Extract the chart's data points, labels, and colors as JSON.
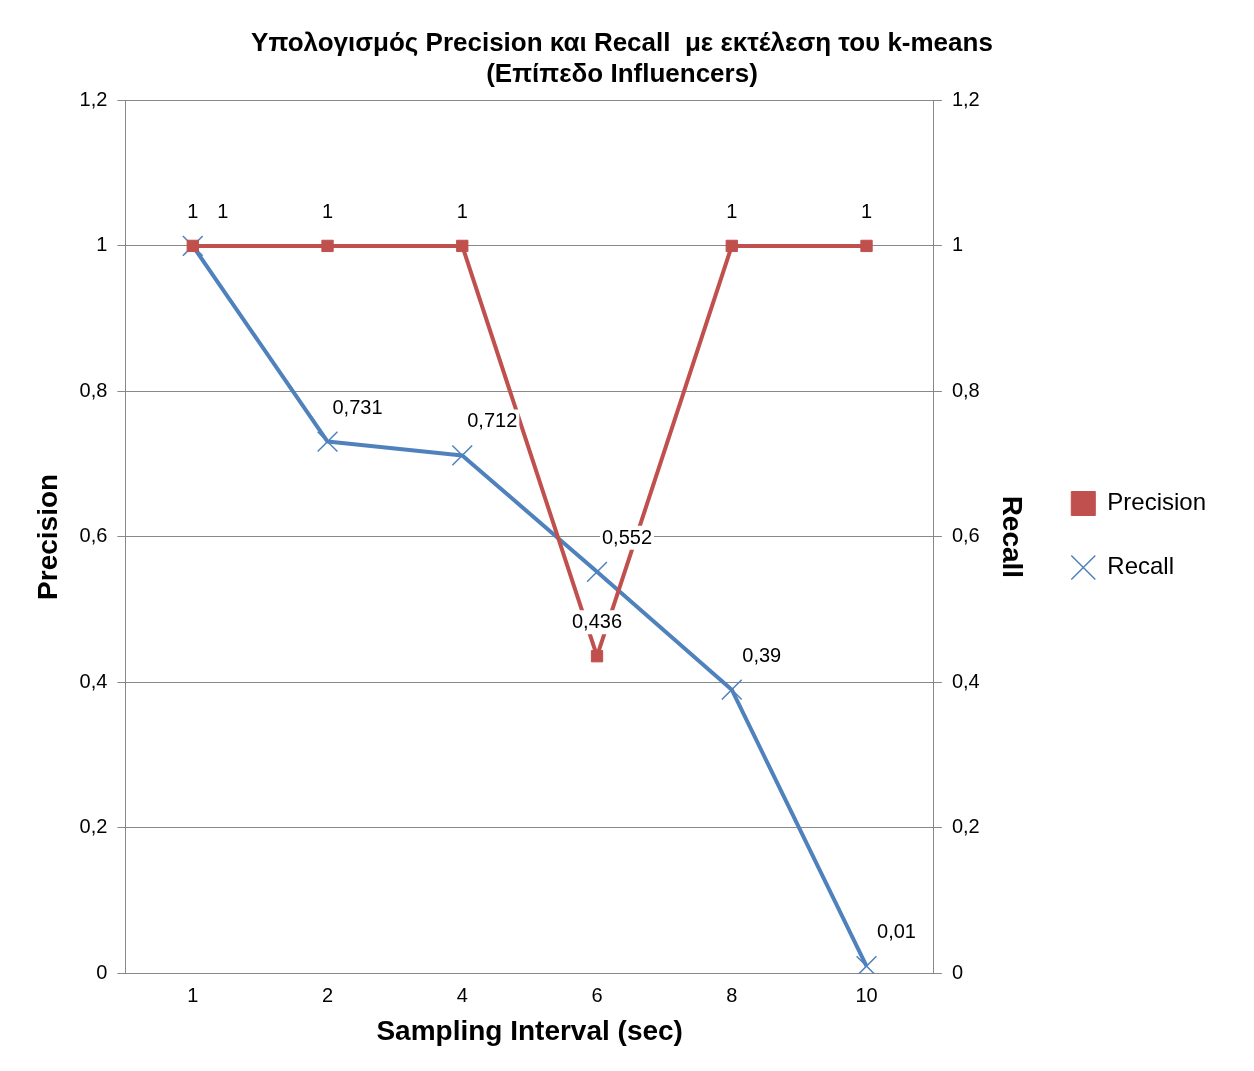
{
  "chart_data": {
    "type": "line",
    "title": "Υπολογισμός Precision και Recall  με εκτέλεση του k-means\n(Επίπεδο Influencers)",
    "xlabel": "Sampling Interval (sec)",
    "ylabel": "Precision",
    "y2label": "Recall",
    "categories": [
      "1",
      "2",
      "4",
      "6",
      "8",
      "10"
    ],
    "series": [
      {
        "name": "Precision",
        "color": "#c0504d",
        "marker": "square",
        "values": [
          1,
          1,
          1,
          0.436,
          1,
          1
        ],
        "value_labels": [
          "1",
          "1",
          "1",
          "0,436",
          "1",
          "1"
        ]
      },
      {
        "name": "Recall",
        "color": "#4f81bd",
        "marker": "cross",
        "values": [
          1,
          0.731,
          0.712,
          0.552,
          0.39,
          0.01
        ],
        "value_labels": [
          "1",
          "0,731",
          "0,712",
          "0,552",
          "0,39",
          "0,01"
        ]
      }
    ],
    "ylim": [
      0,
      1.2
    ],
    "yticks": [
      0,
      {
        "value": 0.2,
        "label": "0,2"
      },
      {
        "value": 0.4,
        "label": "0,4"
      },
      {
        "value": 0.6,
        "label": "0,6"
      },
      {
        "value": 0.8,
        "label": "0,8"
      },
      1,
      {
        "value": 1.2,
        "label": "1,2"
      }
    ],
    "y2lim": [
      0,
      1.2
    ],
    "y2ticks": [
      0,
      {
        "value": 0.2,
        "label": "0,2"
      },
      {
        "value": 0.4,
        "label": "0,4"
      },
      {
        "value": 0.6,
        "label": "0,6"
      },
      {
        "value": 0.8,
        "label": "0,8"
      },
      1,
      {
        "value": 1.2,
        "label": "1,2"
      }
    ],
    "grid": "y",
    "legend": "right",
    "line_style": "solid"
  }
}
